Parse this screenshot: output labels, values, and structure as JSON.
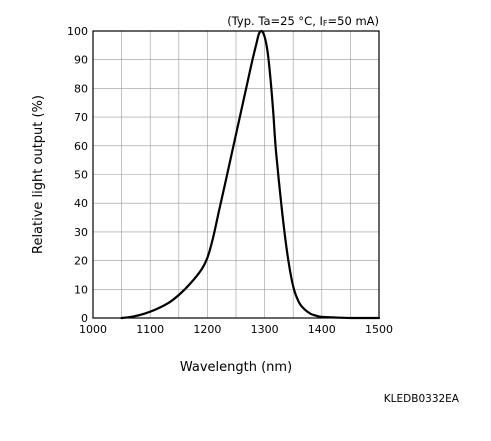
{
  "chart_data": {
    "type": "line",
    "title": "",
    "note": {
      "prefix": "(Typ. Ta=25 °C, I",
      "subscript": "F",
      "suffix": "=50 mA)"
    },
    "xlabel": "Wavelength (nm)",
    "ylabel": "Relative light output (%)",
    "xlim": [
      1000,
      1500
    ],
    "ylim": [
      0,
      100
    ],
    "x_ticks": [
      1000,
      1100,
      1200,
      1300,
      1400,
      1500
    ],
    "y_ticks": [
      0,
      10,
      20,
      30,
      40,
      50,
      60,
      70,
      80,
      90,
      100
    ],
    "x_minor_step": 50,
    "y_minor_step": 10,
    "grid": true,
    "legend": "none",
    "series": [
      {
        "x": [
          1050,
          1070,
          1090,
          1110,
          1130,
          1150,
          1170,
          1190,
          1200,
          1210,
          1220,
          1230,
          1240,
          1250,
          1260,
          1270,
          1280,
          1285,
          1290,
          1295,
          1300,
          1305,
          1310,
          1315,
          1320,
          1330,
          1340,
          1350,
          1360,
          1370,
          1380,
          1390,
          1400,
          1420,
          1450,
          1500
        ],
        "y": [
          0,
          0.5,
          1.5,
          3,
          5,
          8,
          12,
          17,
          21,
          28,
          37,
          46,
          55,
          64,
          73,
          82,
          91,
          95,
          99,
          100,
          98,
          93,
          84,
          72,
          58,
          38,
          22,
          11,
          5.5,
          3,
          1.5,
          0.8,
          0.4,
          0.2,
          0,
          0
        ],
        "color": "#000000"
      }
    ]
  },
  "figure_code": "KLEDB0332EA"
}
